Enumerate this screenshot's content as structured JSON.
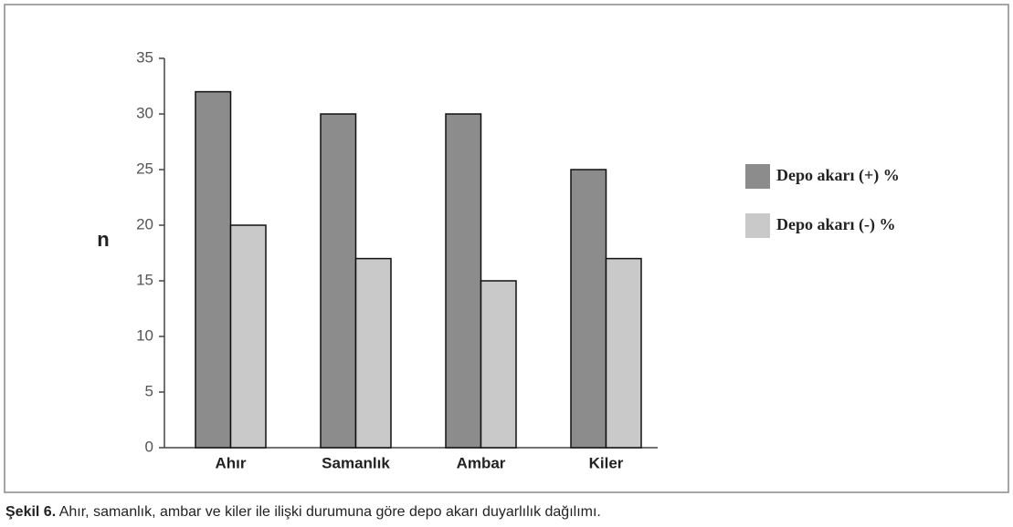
{
  "chart_data": {
    "type": "bar",
    "categories": [
      "Ahır",
      "Samanlık",
      "Ambar",
      "Kiler"
    ],
    "series": [
      {
        "name": "Depo akarı (+) %",
        "color": "#8c8c8c",
        "values": [
          32,
          30,
          30,
          25
        ]
      },
      {
        "name": "Depo akarı (-) %",
        "color": "#c9c9c9",
        "values": [
          20,
          17,
          15,
          17
        ]
      }
    ],
    "y_label": "n",
    "ylim": [
      0,
      35
    ],
    "yticks": [
      0,
      5,
      10,
      15,
      20,
      25,
      30,
      35
    ],
    "grid": false,
    "legend": "right"
  },
  "caption": {
    "label": "Şekil 6.",
    "text": "Ahır, samanlık, ambar ve kiler ile ilişki durumuna göre depo akarı duyarlılık dağılımı."
  }
}
